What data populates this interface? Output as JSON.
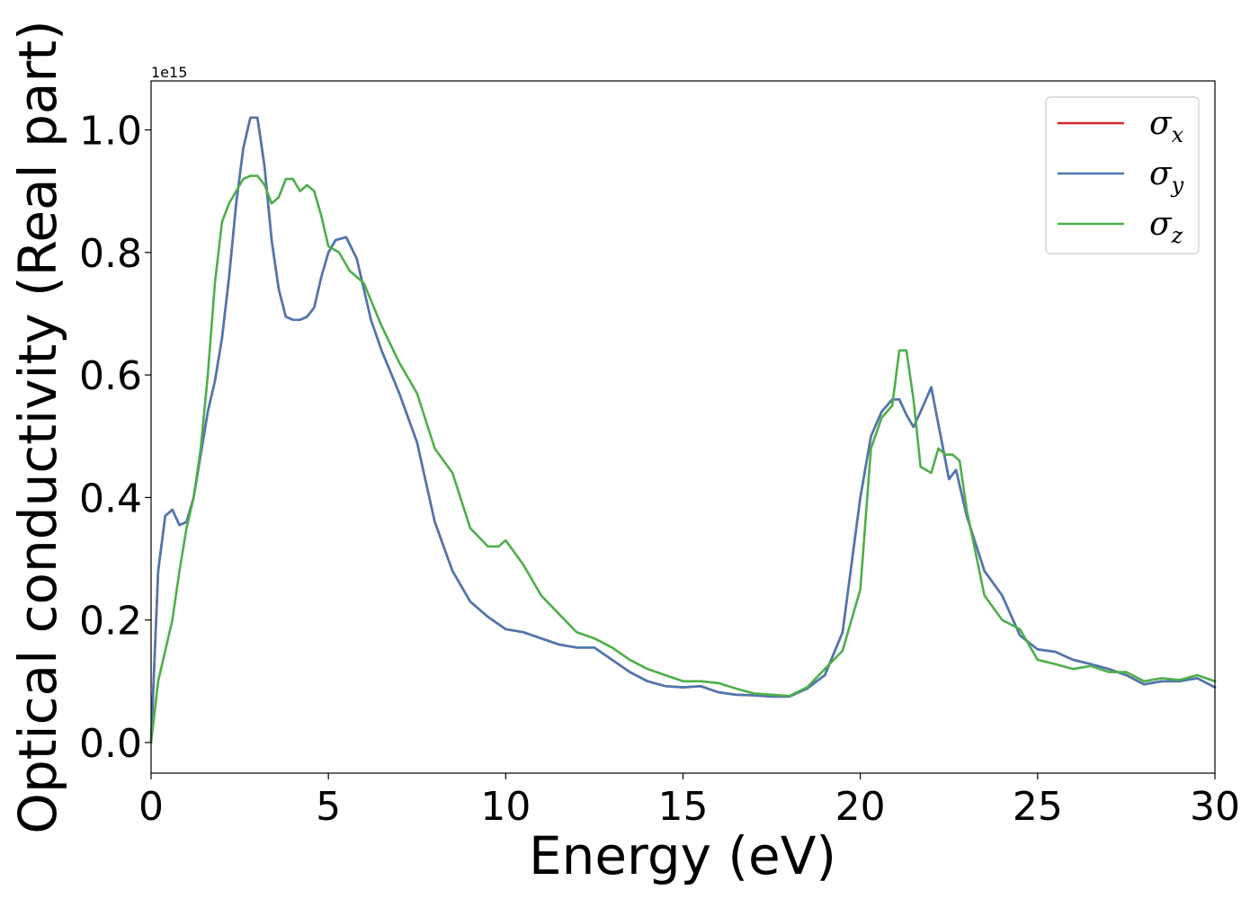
{
  "chart_data": {
    "type": "line",
    "title": "",
    "xlabel": "Energy (eV)",
    "ylabel": "Optical conductivity (Real part)",
    "y_offset_text": "1e15",
    "xlim": [
      0,
      30
    ],
    "ylim": [
      -0.05,
      1.08
    ],
    "xticks": [
      0,
      5,
      10,
      15,
      20,
      25,
      30
    ],
    "xtick_labels": [
      "0",
      "5",
      "10",
      "15",
      "20",
      "25",
      "30"
    ],
    "yticks": [
      0.0,
      0.2,
      0.4,
      0.6,
      0.8,
      1.0
    ],
    "ytick_labels": [
      "0.0",
      "0.2",
      "0.4",
      "0.6",
      "0.8",
      "1.0"
    ],
    "grid": false,
    "legend_position": "top-right",
    "series": [
      {
        "name": "σx",
        "legend_symbol": "σ",
        "legend_sub": "x",
        "color": "#d62728",
        "x": [
          0,
          0.2,
          0.4,
          0.6,
          0.8,
          1.0,
          1.2,
          1.4,
          1.6,
          1.8,
          2.0,
          2.2,
          2.4,
          2.6,
          2.8,
          3.0,
          3.2,
          3.4,
          3.6,
          3.8,
          4.0,
          4.2,
          4.4,
          4.6,
          4.8,
          5.0,
          5.2,
          5.5,
          5.8,
          6.0,
          6.2,
          6.5,
          7.0,
          7.5,
          8.0,
          8.5,
          9.0,
          9.5,
          10.0,
          10.5,
          11.0,
          11.5,
          12.0,
          12.5,
          13.0,
          13.5,
          14.0,
          14.5,
          15.0,
          15.5,
          16.0,
          16.5,
          17.0,
          17.5,
          18.0,
          18.5,
          19.0,
          19.5,
          20.0,
          20.3,
          20.6,
          20.9,
          21.1,
          21.3,
          21.5,
          21.7,
          22.0,
          22.3,
          22.5,
          22.7,
          23.0,
          23.5,
          24.0,
          24.5,
          25.0,
          25.5,
          26.0,
          26.5,
          27.0,
          27.5,
          28.0,
          28.5,
          29.0,
          29.5,
          30.0
        ],
        "y": [
          0.0,
          0.28,
          0.37,
          0.38,
          0.355,
          0.36,
          0.4,
          0.47,
          0.54,
          0.59,
          0.66,
          0.76,
          0.88,
          0.97,
          1.02,
          1.02,
          0.94,
          0.82,
          0.74,
          0.695,
          0.69,
          0.69,
          0.695,
          0.71,
          0.76,
          0.8,
          0.82,
          0.825,
          0.79,
          0.74,
          0.69,
          0.64,
          0.57,
          0.49,
          0.36,
          0.28,
          0.23,
          0.205,
          0.185,
          0.18,
          0.17,
          0.16,
          0.155,
          0.155,
          0.135,
          0.115,
          0.1,
          0.092,
          0.09,
          0.092,
          0.082,
          0.078,
          0.077,
          0.075,
          0.075,
          0.088,
          0.11,
          0.18,
          0.4,
          0.5,
          0.54,
          0.56,
          0.56,
          0.535,
          0.515,
          0.54,
          0.58,
          0.49,
          0.43,
          0.445,
          0.37,
          0.28,
          0.24,
          0.175,
          0.152,
          0.148,
          0.135,
          0.128,
          0.12,
          0.11,
          0.095,
          0.1,
          0.1,
          0.105,
          0.09
        ]
      },
      {
        "name": "σy",
        "legend_symbol": "σ",
        "legend_sub": "y",
        "color": "#4c78b0",
        "x": [
          0,
          0.2,
          0.4,
          0.6,
          0.8,
          1.0,
          1.2,
          1.4,
          1.6,
          1.8,
          2.0,
          2.2,
          2.4,
          2.6,
          2.8,
          3.0,
          3.2,
          3.4,
          3.6,
          3.8,
          4.0,
          4.2,
          4.4,
          4.6,
          4.8,
          5.0,
          5.2,
          5.5,
          5.8,
          6.0,
          6.2,
          6.5,
          7.0,
          7.5,
          8.0,
          8.5,
          9.0,
          9.5,
          10.0,
          10.5,
          11.0,
          11.5,
          12.0,
          12.5,
          13.0,
          13.5,
          14.0,
          14.5,
          15.0,
          15.5,
          16.0,
          16.5,
          17.0,
          17.5,
          18.0,
          18.5,
          19.0,
          19.5,
          20.0,
          20.3,
          20.6,
          20.9,
          21.1,
          21.3,
          21.5,
          21.7,
          22.0,
          22.3,
          22.5,
          22.7,
          23.0,
          23.5,
          24.0,
          24.5,
          25.0,
          25.5,
          26.0,
          26.5,
          27.0,
          27.5,
          28.0,
          28.5,
          29.0,
          29.5,
          30.0
        ],
        "y": [
          0.0,
          0.28,
          0.37,
          0.38,
          0.355,
          0.36,
          0.4,
          0.47,
          0.54,
          0.59,
          0.66,
          0.76,
          0.88,
          0.97,
          1.02,
          1.02,
          0.94,
          0.82,
          0.74,
          0.695,
          0.69,
          0.69,
          0.695,
          0.71,
          0.76,
          0.8,
          0.82,
          0.825,
          0.79,
          0.74,
          0.69,
          0.64,
          0.57,
          0.49,
          0.36,
          0.28,
          0.23,
          0.205,
          0.185,
          0.18,
          0.17,
          0.16,
          0.155,
          0.155,
          0.135,
          0.115,
          0.1,
          0.092,
          0.09,
          0.092,
          0.082,
          0.078,
          0.077,
          0.075,
          0.075,
          0.088,
          0.11,
          0.18,
          0.4,
          0.5,
          0.54,
          0.56,
          0.56,
          0.535,
          0.515,
          0.54,
          0.58,
          0.49,
          0.43,
          0.445,
          0.37,
          0.28,
          0.24,
          0.175,
          0.152,
          0.148,
          0.135,
          0.128,
          0.12,
          0.11,
          0.095,
          0.1,
          0.1,
          0.105,
          0.09
        ]
      },
      {
        "name": "σz",
        "legend_symbol": "σ",
        "legend_sub": "z",
        "color": "#4daf4a",
        "x": [
          0,
          0.2,
          0.4,
          0.6,
          0.8,
          1.0,
          1.2,
          1.4,
          1.6,
          1.8,
          2.0,
          2.2,
          2.4,
          2.6,
          2.8,
          3.0,
          3.2,
          3.4,
          3.6,
          3.8,
          4.0,
          4.2,
          4.4,
          4.6,
          4.8,
          5.0,
          5.3,
          5.6,
          6.0,
          6.5,
          7.0,
          7.5,
          8.0,
          8.5,
          9.0,
          9.5,
          9.8,
          10.0,
          10.5,
          11.0,
          11.5,
          12.0,
          12.5,
          13.0,
          13.5,
          14.0,
          14.5,
          15.0,
          15.5,
          16.0,
          16.5,
          17.0,
          17.5,
          18.0,
          18.5,
          19.0,
          19.5,
          20.0,
          20.3,
          20.6,
          20.9,
          21.1,
          21.3,
          21.5,
          21.7,
          22.0,
          22.2,
          22.4,
          22.6,
          22.8,
          23.0,
          23.5,
          24.0,
          24.5,
          25.0,
          25.5,
          26.0,
          26.5,
          27.0,
          27.5,
          28.0,
          28.5,
          29.0,
          29.5,
          30.0
        ],
        "y": [
          0.0,
          0.1,
          0.15,
          0.2,
          0.28,
          0.35,
          0.4,
          0.48,
          0.6,
          0.75,
          0.85,
          0.88,
          0.9,
          0.92,
          0.925,
          0.925,
          0.91,
          0.88,
          0.89,
          0.92,
          0.92,
          0.9,
          0.91,
          0.9,
          0.86,
          0.81,
          0.8,
          0.77,
          0.75,
          0.68,
          0.62,
          0.57,
          0.48,
          0.44,
          0.35,
          0.32,
          0.32,
          0.33,
          0.29,
          0.24,
          0.21,
          0.18,
          0.17,
          0.155,
          0.135,
          0.12,
          0.11,
          0.1,
          0.1,
          0.097,
          0.088,
          0.08,
          0.078,
          0.076,
          0.09,
          0.12,
          0.15,
          0.25,
          0.48,
          0.53,
          0.55,
          0.64,
          0.64,
          0.56,
          0.45,
          0.44,
          0.48,
          0.47,
          0.47,
          0.46,
          0.38,
          0.24,
          0.2,
          0.185,
          0.135,
          0.128,
          0.12,
          0.125,
          0.115,
          0.115,
          0.1,
          0.105,
          0.102,
          0.11,
          0.1
        ]
      }
    ]
  }
}
